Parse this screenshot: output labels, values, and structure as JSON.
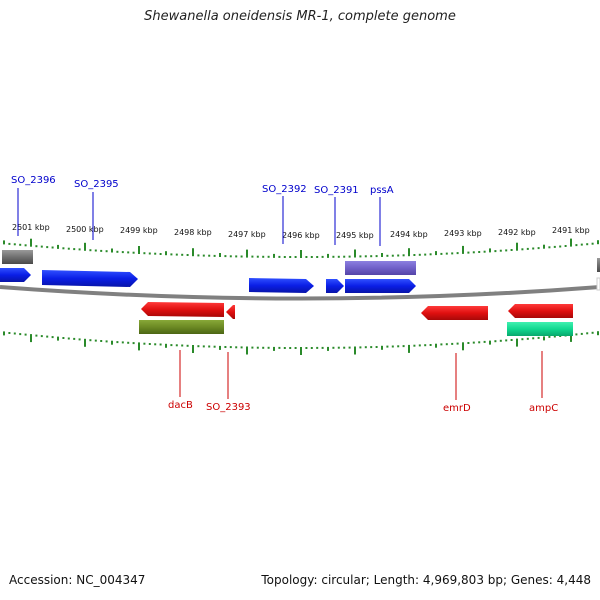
{
  "title": "Shewanella oneidensis MR-1, complete genome",
  "footer": {
    "accession": "Accession: NC_004347",
    "info": "Topology: circular; Length: 4,969,803 bp; Genes: 4,448"
  },
  "colors": {
    "forward_gene": "#0a1ee6",
    "reverse_gene": "#e01010",
    "gray_gene": "#707070",
    "purple_feature": "#7060c8",
    "olive_feature": "#6c8a24",
    "teal_feature": "#10d890",
    "ticks": "#2a8a2a",
    "backbone": "#808080",
    "top_label": "#0000cc",
    "bottom_label": "#cc0000"
  },
  "kbp_labels": [
    "2501 kbp",
    "2500 kbp",
    "2499 kbp",
    "2498 kbp",
    "2497 kbp",
    "2496 kbp",
    "2495 kbp",
    "2494 kbp",
    "2493 kbp",
    "2492 kbp",
    "2491 kbp"
  ],
  "top_gene_labels": [
    "SO_2396",
    "SO_2395",
    "SO_2392",
    "SO_2391",
    "pssA"
  ],
  "bottom_gene_labels": [
    "dacB",
    "SO_2393",
    "emrD",
    "ampC"
  ]
}
